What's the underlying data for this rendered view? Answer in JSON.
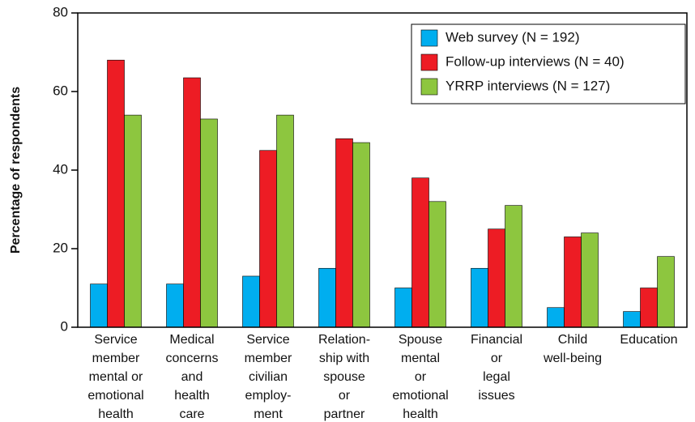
{
  "chart_data": {
    "type": "bar",
    "y_label": "Percentage of respondents",
    "categories": [
      [
        "Service",
        "member",
        "mental or",
        "emotional",
        "health"
      ],
      [
        "Medical",
        "concerns",
        "and",
        "health",
        "care"
      ],
      [
        "Service",
        "member",
        "civilian",
        "employ-",
        "ment"
      ],
      [
        "Relation-",
        "ship with",
        "spouse",
        "or",
        "partner"
      ],
      [
        "Spouse",
        "mental",
        "or",
        "emotional",
        "health"
      ],
      [
        "Financial",
        "or",
        "legal",
        "issues"
      ],
      [
        "Child",
        "well-being"
      ],
      [
        "Education"
      ]
    ],
    "series": [
      {
        "name": "Web survey (N = 192)",
        "color": "#00aeef",
        "values": [
          11,
          11,
          13,
          15,
          10,
          15,
          5,
          4
        ]
      },
      {
        "name": "Follow-up interviews (N = 40)",
        "color": "#ed1c24",
        "values": [
          68,
          63.5,
          45,
          48,
          38,
          25,
          23,
          10
        ]
      },
      {
        "name": "YRRP interviews (N = 127)",
        "color": "#8dc63f",
        "values": [
          54,
          53,
          54,
          47,
          32,
          31,
          24,
          18
        ]
      }
    ],
    "ylim": [
      0,
      80
    ],
    "yticks": [
      0,
      20,
      40,
      60,
      80
    ],
    "legend": "top-right"
  }
}
